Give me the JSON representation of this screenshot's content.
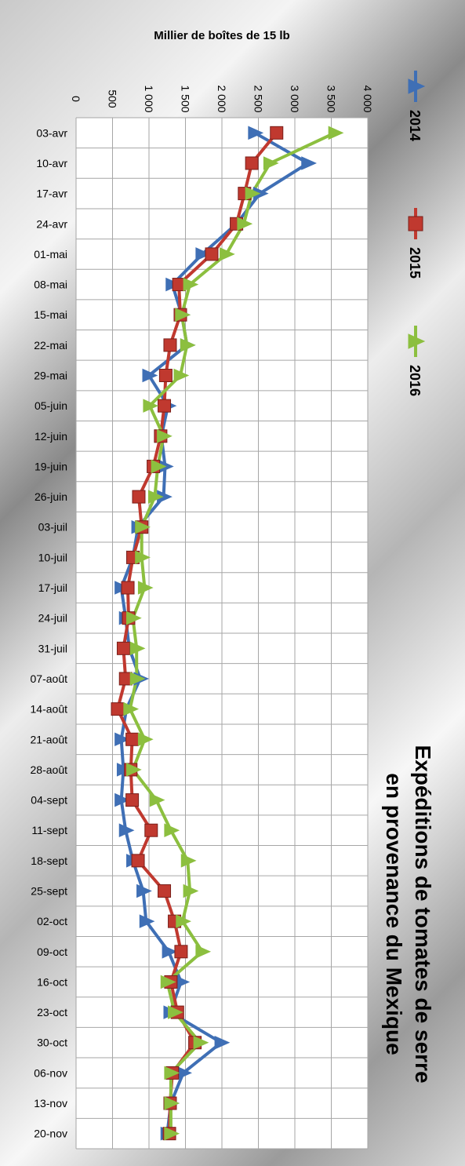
{
  "chart_data": {
    "type": "line",
    "title": "Expéditions de tomates de serre en provenance du Mexique",
    "ylabel": "Millier de boîtes de 15 lb",
    "ylim": [
      0,
      4000
    ],
    "yticks": [
      "0",
      "500",
      "1 000",
      "1 500",
      "2 000",
      "2 500",
      "3 000",
      "3 500",
      "4 000"
    ],
    "categories": [
      "03-avr",
      "10-avr",
      "17-avr",
      "24-avr",
      "01-mai",
      "08-mai",
      "15-mai",
      "22-mai",
      "29-mai",
      "05-juin",
      "12-juin",
      "19-juin",
      "26-juin",
      "03-juil",
      "10-juil",
      "17-juil",
      "24-juil",
      "31-juil",
      "07-août",
      "14-août",
      "21-août",
      "28-août",
      "04-sept",
      "11-sept",
      "18-sept",
      "25-sept",
      "02-oct",
      "09-oct",
      "16-oct",
      "23-oct",
      "30-oct",
      "06-nov",
      "13-nov",
      "20-nov"
    ],
    "grid": true,
    "legend_position": "top-right",
    "series": [
      {
        "name": "2014",
        "color": "#3f6fb5",
        "marker": "triangle",
        "values": [
          2450,
          3180,
          2520,
          2200,
          1730,
          1320,
          1450,
          1520,
          1000,
          1260,
          1170,
          1220,
          1200,
          850,
          780,
          620,
          680,
          730,
          880,
          690,
          620,
          650,
          620,
          680,
          780,
          920,
          960,
          1270,
          1440,
          1290,
          1990,
          1470,
          1300,
          1250
        ]
      },
      {
        "name": "2015",
        "color": "#c0392f",
        "marker": "square",
        "values": [
          2750,
          2410,
          2310,
          2200,
          1860,
          1410,
          1430,
          1290,
          1230,
          1210,
          1160,
          1060,
          860,
          900,
          780,
          710,
          720,
          650,
          680,
          570,
          770,
          750,
          770,
          1030,
          850,
          1210,
          1350,
          1440,
          1300,
          1390,
          1630,
          1320,
          1290,
          1280
        ]
      },
      {
        "name": "2016",
        "color": "#8cbf3f",
        "marker": "triangle",
        "values": [
          3550,
          2660,
          2410,
          2300,
          2060,
          1560,
          1450,
          1520,
          1430,
          1010,
          1200,
          1120,
          1080,
          900,
          900,
          940,
          780,
          830,
          830,
          740,
          940,
          780,
          1100,
          1300,
          1530,
          1560,
          1460,
          1730,
          1250,
          1350,
          1700,
          1300,
          1300,
          1300
        ]
      }
    ]
  }
}
